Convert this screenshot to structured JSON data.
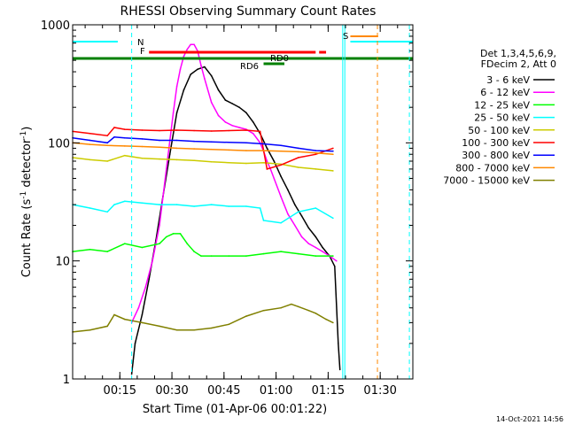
{
  "chart_data": {
    "type": "line",
    "title": "RHESSI Observing Summary Count Rates",
    "xlabel": "Start Time (01-Apr-06 00:01:22)",
    "ylabel": "Count Rate (s⁻¹ detector⁻¹)",
    "ylabel_parts": [
      "Count Rate (s",
      "-1",
      " detector",
      "-1",
      ")"
    ],
    "y_scale": "log",
    "ylim": [
      1,
      1000
    ],
    "xlim_minutes": [
      0,
      98
    ],
    "yticks": [
      {
        "value": 1,
        "label": "1"
      },
      {
        "value": 10,
        "label": "10"
      },
      {
        "value": 100,
        "label": "100"
      },
      {
        "value": 1000,
        "label": "1000"
      }
    ],
    "xticks": [
      {
        "value": 13.6,
        "label": "00:15"
      },
      {
        "value": 28.6,
        "label": "00:30"
      },
      {
        "value": 43.6,
        "label": "00:45"
      },
      {
        "value": 58.6,
        "label": "01:00"
      },
      {
        "value": 73.6,
        "label": "01:15"
      },
      {
        "value": 88.6,
        "label": "01:30"
      }
    ],
    "legend_title": [
      "Det 1,3,4,5,6,9,",
      "FDecim 2, Att 0"
    ],
    "legend_position": "right",
    "series": [
      {
        "name": "3 - 6 keV",
        "color": "#000000",
        "x": [
          17,
          18,
          20,
          22,
          24,
          26,
          28,
          30,
          32,
          34,
          36,
          38,
          40,
          42,
          44,
          46,
          48,
          50,
          52,
          54,
          56,
          58,
          60,
          62,
          64,
          66,
          68,
          70,
          72,
          74,
          75.5,
          76.5,
          77
        ],
        "y": [
          1.1,
          2,
          3.5,
          7,
          15,
          35,
          80,
          180,
          280,
          380,
          420,
          440,
          370,
          280,
          230,
          215,
          200,
          180,
          150,
          120,
          90,
          70,
          52,
          40,
          30,
          24,
          19,
          16,
          13,
          11,
          9,
          2,
          1.2
        ]
      },
      {
        "name": "6 - 12 keV",
        "color": "#ff00ff",
        "x": [
          17,
          19,
          21,
          23,
          25,
          27,
          29,
          30,
          31,
          32,
          33,
          34,
          35,
          36,
          37,
          38,
          40,
          42,
          44,
          46,
          48,
          50,
          52,
          54,
          55,
          56,
          57,
          58,
          60,
          62,
          64,
          66,
          68,
          70,
          72,
          74,
          76
        ],
        "y": [
          3,
          4,
          6,
          10,
          20,
          60,
          180,
          300,
          420,
          540,
          620,
          680,
          680,
          600,
          450,
          350,
          220,
          170,
          150,
          140,
          135,
          130,
          120,
          100,
          85,
          70,
          60,
          50,
          35,
          25,
          20,
          16,
          14,
          13,
          12,
          11,
          10
        ]
      },
      {
        "name": "12 - 25 keV",
        "color": "#00ff00",
        "x": [
          0,
          5,
          10,
          15,
          20,
          25,
          27,
          29,
          31,
          33,
          35,
          37,
          40,
          45,
          50,
          55,
          60,
          65,
          70,
          75
        ],
        "y": [
          12,
          12.5,
          12,
          14,
          13,
          14,
          16,
          17,
          17,
          14,
          12,
          11,
          11,
          11,
          11,
          11.5,
          12,
          11.5,
          11,
          11
        ]
      },
      {
        "name": "25 - 50 keV",
        "color": "#00ffff",
        "x": [
          0,
          5,
          10,
          12,
          15,
          20,
          25,
          30,
          35,
          40,
          45,
          50,
          54,
          55,
          60,
          65,
          70,
          75
        ],
        "y": [
          30,
          28,
          26,
          30,
          32,
          31,
          30,
          30,
          29,
          30,
          29,
          29,
          28,
          22,
          21,
          26,
          28,
          23
        ]
      },
      {
        "name": "50 - 100 keV",
        "color": "#cccc00",
        "x": [
          0,
          5,
          10,
          15,
          20,
          25,
          30,
          35,
          40,
          45,
          50,
          55,
          60,
          65,
          70,
          75
        ],
        "y": [
          75,
          72,
          70,
          78,
          74,
          73,
          72,
          71,
          69,
          68,
          67,
          68,
          66,
          62,
          60,
          58
        ]
      },
      {
        "name": "100 - 300 keV",
        "color": "#ff0000",
        "x": [
          0,
          5,
          10,
          12,
          15,
          20,
          25,
          30,
          35,
          40,
          45,
          50,
          54,
          56,
          60,
          65,
          70,
          75
        ],
        "y": [
          125,
          120,
          115,
          135,
          130,
          128,
          127,
          128,
          127,
          126,
          127,
          128,
          125,
          60,
          65,
          75,
          80,
          90
        ]
      },
      {
        "name": "300 - 800 keV",
        "color": "#0000ff",
        "x": [
          0,
          5,
          10,
          12,
          15,
          20,
          25,
          30,
          35,
          40,
          45,
          50,
          55,
          60,
          65,
          70,
          75
        ],
        "y": [
          110,
          105,
          100,
          112,
          110,
          108,
          105,
          105,
          103,
          102,
          101,
          100,
          98,
          95,
          90,
          86,
          85
        ]
      },
      {
        "name": "800 - 7000 keV",
        "color": "#ff8800",
        "x": [
          0,
          5,
          10,
          15,
          20,
          25,
          30,
          35,
          40,
          45,
          50,
          55,
          60,
          65,
          70,
          75
        ],
        "y": [
          100,
          97,
          95,
          94,
          93,
          92,
          90,
          89,
          88,
          87,
          86,
          86,
          85,
          84,
          82,
          80
        ]
      },
      {
        "name": "7000 - 15000 keV",
        "color": "#808000",
        "x": [
          0,
          5,
          10,
          12,
          15,
          20,
          25,
          30,
          35,
          40,
          45,
          50,
          55,
          60,
          63,
          65,
          68,
          70,
          73,
          75
        ],
        "y": [
          2.5,
          2.6,
          2.8,
          3.5,
          3.2,
          3,
          2.8,
          2.6,
          2.6,
          2.7,
          2.9,
          3.4,
          3.8,
          4,
          4.3,
          4.1,
          3.8,
          3.6,
          3.2,
          3
        ]
      }
    ],
    "annotations": [
      {
        "label": "N",
        "color": "#00ffff"
      },
      {
        "label": "F",
        "color": "#ff0000"
      },
      {
        "label": "S",
        "color": "#ff8800"
      },
      {
        "label": "RD0",
        "color": "#008000"
      },
      {
        "label": "RD6",
        "color": "#008000"
      }
    ],
    "timestamp": "14-Oct-2021 14:56"
  }
}
